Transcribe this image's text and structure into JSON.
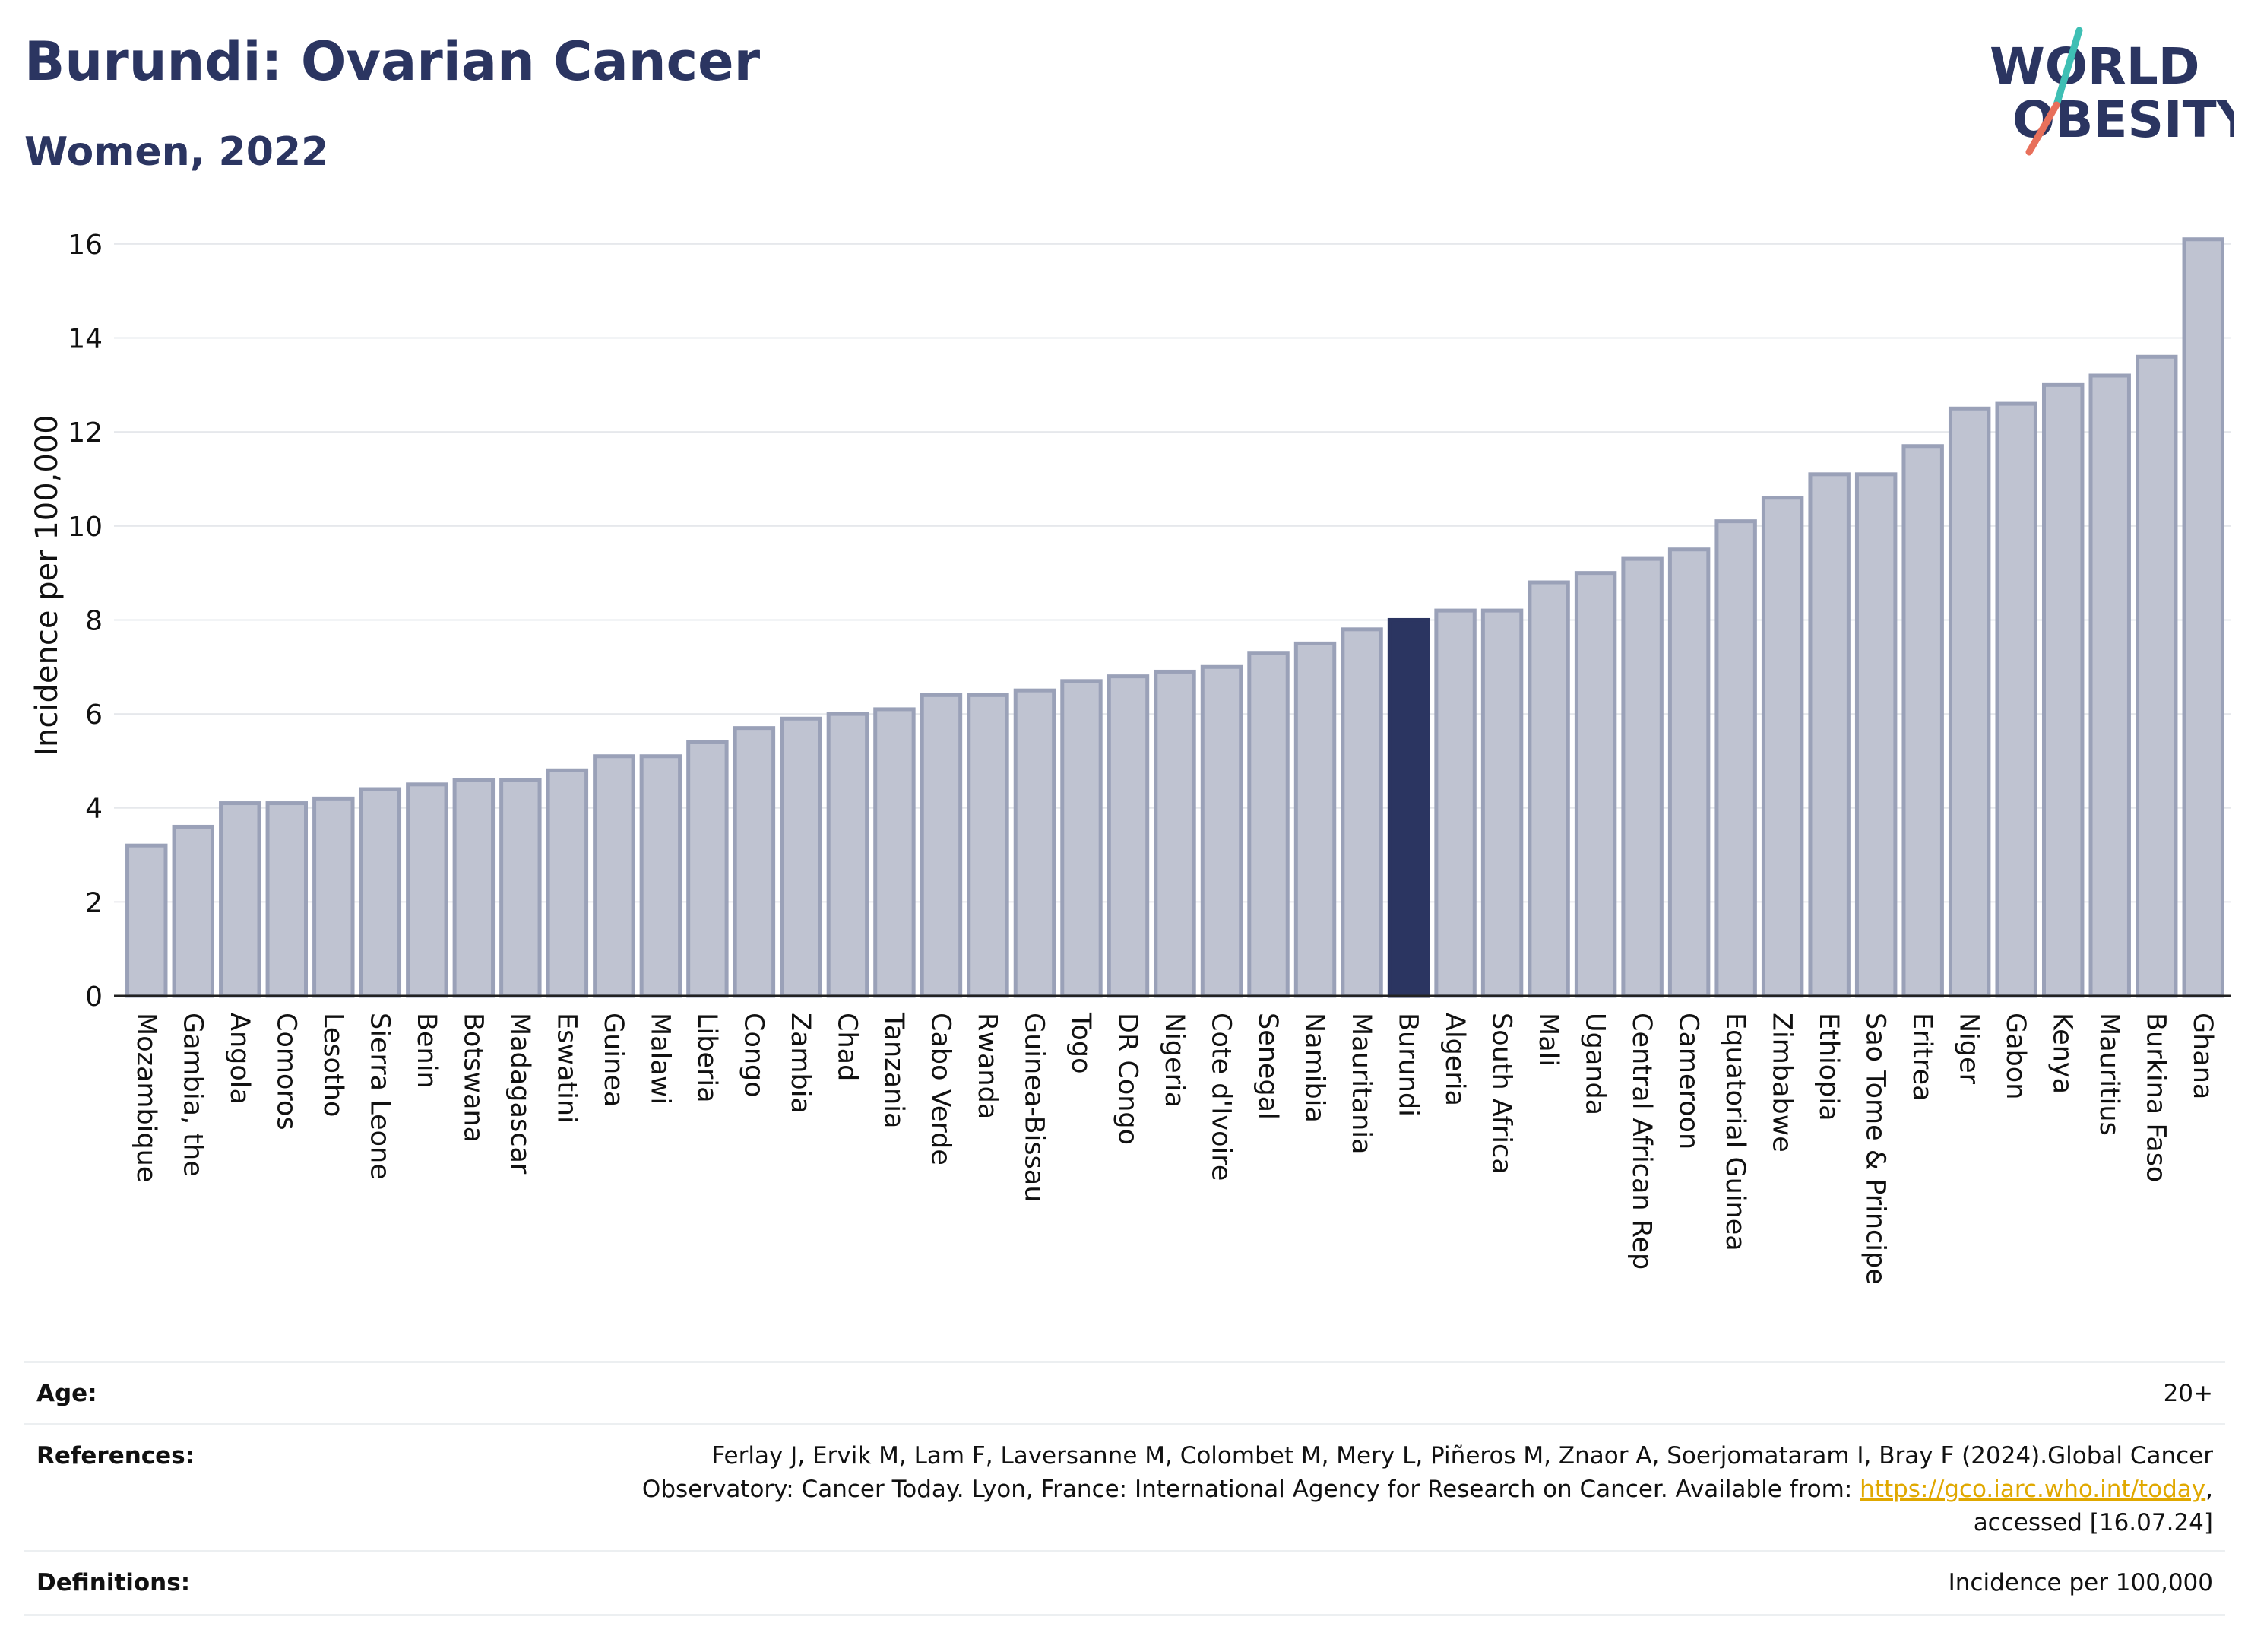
{
  "header": {
    "title": "Burundi: Ovarian Cancer",
    "subtitle": "Women, 2022",
    "logo_line1": "WORLD",
    "logo_line2": "OBESITY"
  },
  "colors": {
    "highlight": "#2b3561",
    "bar_fill": "#bfc3d1",
    "bar_stroke": "#9aa1b8",
    "title": "#2b3561",
    "logo_teal": "#3ebfb4",
    "logo_coral": "#e8705b",
    "link": "#e0a800"
  },
  "chart_data": {
    "type": "bar",
    "ylabel": "Incidence per 100,000",
    "ylim": [
      0,
      16.5
    ],
    "yticks": [
      0,
      2,
      4,
      6,
      8,
      10,
      12,
      14,
      16
    ],
    "grid": true,
    "highlight": "Burundi",
    "categories": [
      "Mozambique",
      "Gambia, the",
      "Angola",
      "Comoros",
      "Lesotho",
      "Sierra Leone",
      "Benin",
      "Botswana",
      "Madagascar",
      "Eswatini",
      "Guinea",
      "Malawi",
      "Liberia",
      "Congo",
      "Zambia",
      "Chad",
      "Tanzania",
      "Cabo Verde",
      "Rwanda",
      "Guinea-Bissau",
      "Togo",
      "DR Congo",
      "Nigeria",
      "Cote d'Ivoire",
      "Senegal",
      "Namibia",
      "Mauritania",
      "Burundi",
      "Algeria",
      "South Africa",
      "Mali",
      "Uganda",
      "Central African Rep",
      "Cameroon",
      "Equatorial Guinea",
      "Zimbabwe",
      "Ethiopia",
      "Sao Tome & Principe",
      "Eritrea",
      "Niger",
      "Gabon",
      "Kenya",
      "Mauritius",
      "Burkina Faso",
      "Ghana"
    ],
    "values": [
      3.2,
      3.6,
      4.1,
      4.1,
      4.2,
      4.4,
      4.5,
      4.6,
      4.6,
      4.8,
      5.1,
      5.1,
      5.4,
      5.7,
      5.9,
      6.0,
      6.1,
      6.4,
      6.4,
      6.5,
      6.7,
      6.8,
      6.9,
      7.0,
      7.3,
      7.5,
      7.8,
      8.0,
      8.2,
      8.2,
      8.8,
      9.0,
      9.3,
      9.5,
      10.1,
      10.6,
      11.1,
      11.1,
      11.7,
      12.5,
      12.6,
      13.0,
      13.2,
      13.6,
      16.1
    ]
  },
  "meta": {
    "age_label": "Age:",
    "age_value": "20+",
    "references_label": "References:",
    "references_line1": "Ferlay J, Ervik M, Lam F, Laversanne M, Colombet M, Mery L, Piñeros M, Znaor A, Soerjomataram I, Bray F (2024).Global Cancer",
    "references_line2_pre": "Observatory: Cancer Today. Lyon, France: International Agency for Research on Cancer. Available from: ",
    "references_link": "https://gco.iarc.who.int/today",
    "references_line2_post": ",",
    "references_line3": "accessed [16.07.24]",
    "definitions_label": "Definitions:",
    "definitions_value": "Incidence per 100,000"
  }
}
